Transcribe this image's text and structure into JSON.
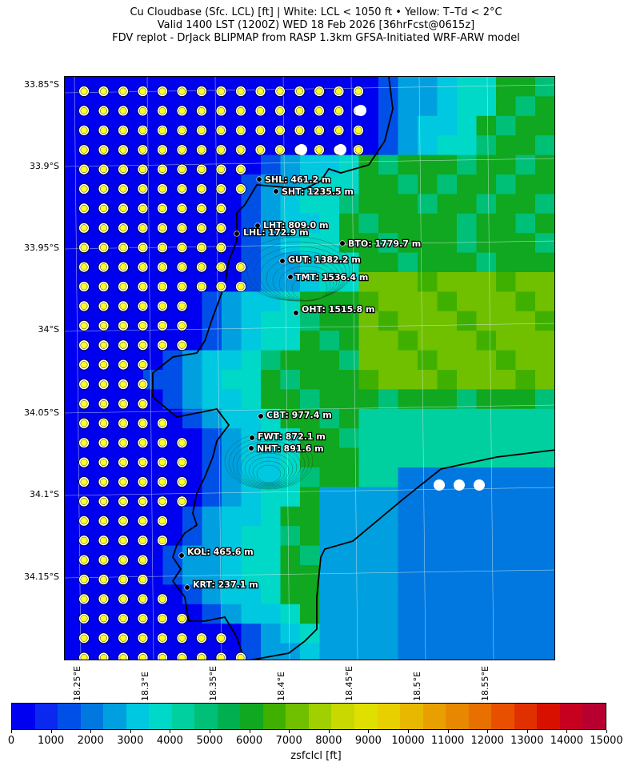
{
  "title": {
    "line1": "Cu Cloudbase (Sfc. LCL) [ft]  |  White: LCL < 1050 ft • Yellow: T–Td < 2°C",
    "line2": "Valid 1400 LST (1200Z) WED 18 Feb 2026 [36hrFcst@0615z]",
    "line3": "FDV replot - DrJack BLIPMAP from RASP 1.3km GFSA-Initiated WRF-ARW model"
  },
  "lat_labels": [
    "33.85°S",
    "33.9°S",
    "33.95°S",
    "34°S",
    "34.05°S",
    "34.1°S",
    "34.15°S"
  ],
  "lon_labels": [
    "18.25°E",
    "18.3°E",
    "18.35°E",
    "18.4°E",
    "18.45°E",
    "18.5°E",
    "18.55°E"
  ],
  "stations": [
    {
      "label": "SHL: 461.2 m"
    },
    {
      "label": "SHT: 1235.5 m"
    },
    {
      "label": "LHT: 809.0 m"
    },
    {
      "label": "LHL: 172.9 m"
    },
    {
      "label": "BTO: 1779.7 m"
    },
    {
      "label": "GUT: 1382.2 m"
    },
    {
      "label": "TMT: 1536.4 m"
    },
    {
      "label": "OHT: 1515.8 m"
    },
    {
      "label": "CBT: 977.4 m"
    },
    {
      "label": "FWT: 872.1 m"
    },
    {
      "label": "NHT: 891.6 m"
    },
    {
      "label": "KOL: 465.6 m"
    },
    {
      "label": "KRT: 237.1 m"
    }
  ],
  "colorbar": {
    "label": "zsfclcl [ft]",
    "ticks": [
      "0",
      "1000",
      "2000",
      "3000",
      "4000",
      "5000",
      "6000",
      "7000",
      "8000",
      "9000",
      "10000",
      "11000",
      "12000",
      "13000",
      "14000",
      "15000"
    ],
    "colors": [
      "#0000f0",
      "#0a28f0",
      "#0050e8",
      "#0078e0",
      "#00a0e0",
      "#00c8e0",
      "#00d8c8",
      "#00d0a0",
      "#00c078",
      "#00b050",
      "#10a820",
      "#40b000",
      "#70c000",
      "#a0d000",
      "#c8d800",
      "#e0e000",
      "#e8d000",
      "#e8b800",
      "#e8a000",
      "#e88800",
      "#e87000",
      "#e85000",
      "#e03000",
      "#d81000",
      "#c80020",
      "#b80030"
    ]
  },
  "legend_colors": {
    "white_marker": "#ffffff",
    "yellow_marker": "#ffff20",
    "ocean": "#0000f0"
  }
}
